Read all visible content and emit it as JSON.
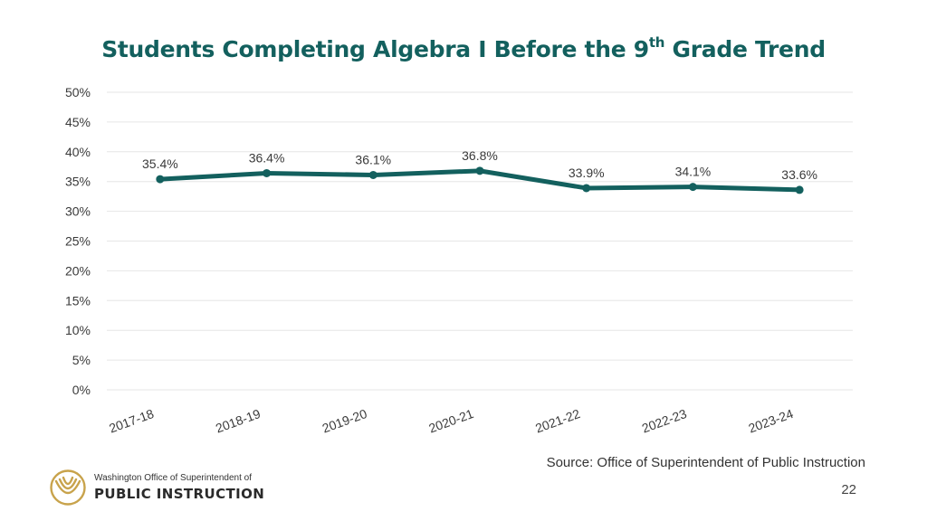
{
  "slide": {
    "title_main": "Students Completing Algebra I Before the 9",
    "title_sup": "th",
    "title_end": " Grade Trend",
    "source": "Source: Office of Superintendent of Public Instruction",
    "page_number": "22"
  },
  "logo": {
    "line1": "Washington Office of Superintendent of",
    "line2": "PUBLIC INSTRUCTION",
    "icon": "ospi-seal-icon",
    "color": "#c8a34c"
  },
  "colors": {
    "line": "#13605e",
    "title": "#13605e",
    "grid": "#e6e6e6",
    "text": "#3a3a3a"
  },
  "chart_data": {
    "type": "line",
    "title": "Students Completing Algebra I Before the 9th Grade Trend",
    "categories": [
      "2017-18",
      "2018-19",
      "2019-20",
      "2020-21",
      "2021-22",
      "2022-23",
      "2023-24"
    ],
    "series": [
      {
        "values": [
          35.4,
          36.4,
          36.1,
          36.8,
          33.9,
          34.1,
          33.6
        ],
        "labels": [
          "35.4%",
          "36.4%",
          "36.1%",
          "36.8%",
          "33.9%",
          "34.1%",
          "33.6%"
        ]
      }
    ],
    "ylim": [
      0,
      50
    ],
    "y_ticks": [
      0,
      5,
      10,
      15,
      20,
      25,
      30,
      35,
      40,
      45,
      50
    ],
    "y_tick_labels": [
      "0%",
      "5%",
      "10%",
      "15%",
      "20%",
      "25%",
      "30%",
      "35%",
      "40%",
      "45%",
      "50%"
    ],
    "grid": true,
    "legend": "none",
    "xlabel": "",
    "ylabel": ""
  }
}
